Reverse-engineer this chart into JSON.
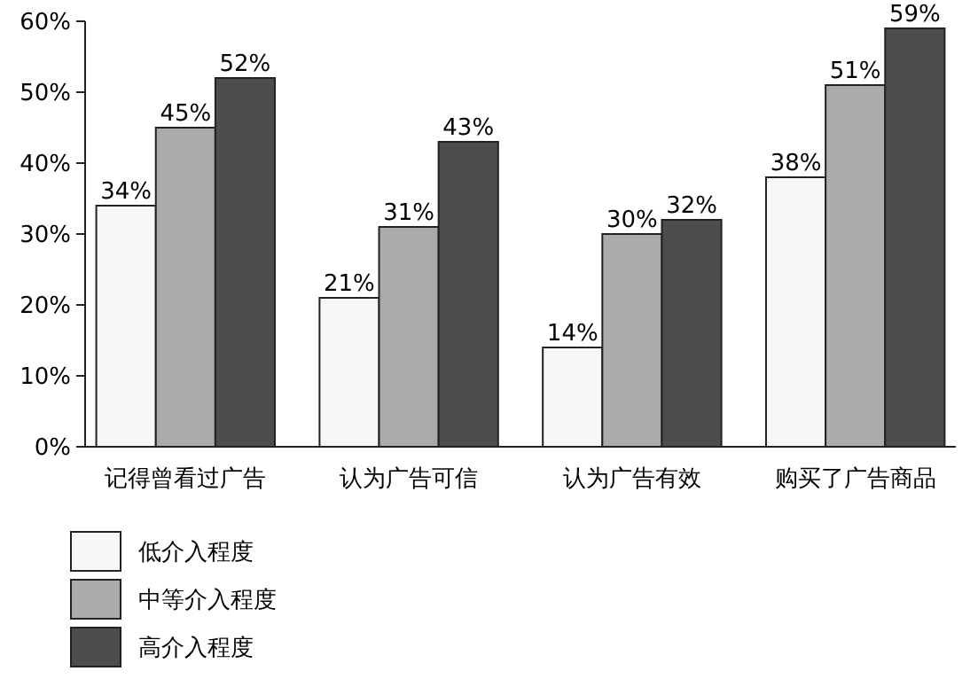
{
  "chart_data": {
    "type": "bar",
    "categories": [
      "记得曾看过广告",
      "认为广告可信",
      "认为广告有效",
      "购买了广告商品"
    ],
    "series": [
      {
        "name": "低介入程度",
        "color": "#f7f7f7",
        "values": [
          34,
          21,
          14,
          38
        ],
        "value_labels": [
          "34%",
          "21%",
          "14%",
          "38%"
        ]
      },
      {
        "name": "中等介入程度",
        "color": "#ababab",
        "values": [
          45,
          31,
          30,
          51
        ],
        "value_labels": [
          "45%",
          "31%",
          "30%",
          "51%"
        ]
      },
      {
        "name": "高介入程度",
        "color": "#4d4d4d",
        "values": [
          52,
          43,
          32,
          59
        ],
        "value_labels": [
          "52%",
          "43%",
          "32%",
          "59%"
        ]
      }
    ],
    "ylim": [
      0,
      60
    ],
    "yticks": [
      {
        "value": 0,
        "label": "0%"
      },
      {
        "value": 10,
        "label": "10%"
      },
      {
        "value": 20,
        "label": "20%"
      },
      {
        "value": 30,
        "label": "30%"
      },
      {
        "value": 40,
        "label": "40%"
      },
      {
        "value": 50,
        "label": "50%"
      },
      {
        "value": 60,
        "label": "60%"
      }
    ],
    "grid": false,
    "legend": "bottom left"
  }
}
